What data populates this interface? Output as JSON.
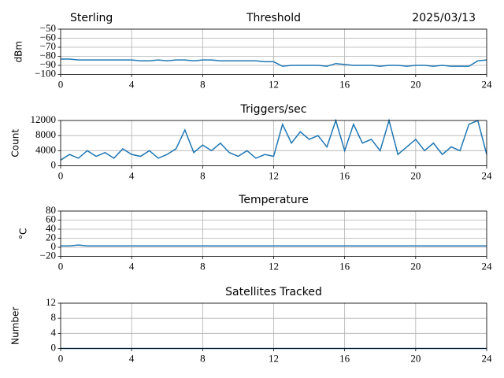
{
  "chart_data": [
    {
      "type": "line",
      "title": "Threshold",
      "location": "Sterling",
      "date": "2025/03/13",
      "y_label": "dBm",
      "x": [
        0,
        0.5,
        1,
        1.5,
        2,
        2.5,
        3,
        3.5,
        4,
        4.5,
        5,
        5.5,
        6,
        6.5,
        7,
        7.5,
        8,
        8.5,
        9,
        9.5,
        10,
        10.5,
        11,
        11.5,
        12,
        12.5,
        13,
        13.5,
        14,
        14.5,
        15,
        15.5,
        16,
        16.5,
        17,
        17.5,
        18,
        18.5,
        19,
        19.5,
        20,
        20.5,
        21,
        21.5,
        22,
        22.5,
        23,
        23.5,
        24
      ],
      "series": [
        {
          "color": "#1f77b4",
          "values": [
            -83,
            -83,
            -84,
            -84,
            -84,
            -84,
            -84,
            -84,
            -84,
            -85,
            -85,
            -84,
            -85,
            -84,
            -84,
            -85,
            -84,
            -84,
            -85,
            -85,
            -85,
            -85,
            -85,
            -86,
            -86,
            -91,
            -90,
            -90,
            -90,
            -90,
            -91,
            -88,
            -89,
            -90,
            -90,
            -90,
            -91,
            -90,
            -90,
            -91,
            -90,
            -90,
            -91,
            -90,
            -91,
            -91,
            -91,
            -85,
            -84
          ]
        }
      ],
      "xlim": [
        0,
        24
      ],
      "xticks": [
        0,
        4,
        8,
        12,
        16,
        20,
        24
      ],
      "ylim": [
        -100,
        -50
      ],
      "yticks": [
        -100,
        -90,
        -80,
        -70,
        -60,
        -50
      ],
      "grid": true
    },
    {
      "type": "line",
      "title": "Triggers/sec",
      "y_label": "Count",
      "x": [
        0,
        0.5,
        1,
        1.5,
        2,
        2.5,
        3,
        3.5,
        4,
        4.5,
        5,
        5.5,
        6,
        6.5,
        7,
        7.5,
        8,
        8.5,
        9,
        9.5,
        10,
        10.5,
        11,
        11.5,
        12,
        12.5,
        13,
        13.5,
        14,
        14.5,
        15,
        15.5,
        16,
        16.5,
        17,
        17.5,
        18,
        18.5,
        19,
        19.5,
        20,
        20.5,
        21,
        21.5,
        22,
        22.5,
        23,
        23.5,
        24
      ],
      "series": [
        {
          "color": "#1f77b4",
          "values": [
            1500,
            3000,
            2000,
            4000,
            2500,
            3500,
            2000,
            4500,
            3000,
            2500,
            4000,
            2000,
            3000,
            4500,
            9500,
            3500,
            5500,
            4000,
            6000,
            3500,
            2500,
            4000,
            2000,
            3000,
            2500,
            11000,
            6000,
            9000,
            7000,
            8000,
            5000,
            12000,
            4000,
            11000,
            6000,
            7000,
            4000,
            12000,
            3000,
            5000,
            7000,
            4000,
            6000,
            3000,
            5000,
            4000,
            11000,
            12000,
            3000
          ]
        }
      ],
      "xlim": [
        0,
        24
      ],
      "xticks": [
        0,
        4,
        8,
        12,
        16,
        20,
        24
      ],
      "ylim": [
        0,
        12000
      ],
      "yticks": [
        0,
        4000,
        8000,
        12000
      ],
      "grid": true
    },
    {
      "type": "line",
      "title": "Temperature",
      "y_label": "°C",
      "x": [
        0,
        0.5,
        1,
        1.5,
        2,
        2.5,
        3,
        3.5,
        4,
        4.5,
        5,
        5.5,
        6,
        6.5,
        7,
        7.5,
        8,
        8.5,
        9,
        9.5,
        10,
        10.5,
        11,
        11.5,
        12,
        12.5,
        13,
        13.5,
        14,
        14.5,
        15,
        15.5,
        16,
        16.5,
        17,
        17.5,
        18,
        18.5,
        19,
        19.5,
        20,
        20.5,
        21,
        21.5,
        22,
        22.5,
        23,
        23.5,
        24
      ],
      "series": [
        {
          "color": "#1f77b4",
          "values": [
            3,
            3,
            5,
            3,
            3,
            3,
            3,
            3,
            3,
            3,
            3,
            3,
            3,
            3,
            3,
            3,
            3,
            3,
            3,
            3,
            3,
            3,
            3,
            3,
            3,
            3,
            3,
            3,
            3,
            3,
            3,
            3,
            3,
            3,
            3,
            3,
            3,
            3,
            3,
            3,
            3,
            3,
            3,
            3,
            3,
            3,
            3,
            3,
            3
          ]
        }
      ],
      "xlim": [
        0,
        24
      ],
      "xticks": [
        0,
        4,
        8,
        12,
        16,
        20,
        24
      ],
      "ylim": [
        -20,
        80
      ],
      "yticks": [
        -20,
        0,
        20,
        40,
        60,
        80
      ],
      "grid": true
    },
    {
      "type": "line",
      "title": "Satellites Tracked",
      "y_label": "Number",
      "x": [
        0,
        0.5,
        1,
        1.5,
        2,
        2.5,
        3,
        3.5,
        4,
        4.5,
        5,
        5.5,
        6,
        6.5,
        7,
        7.5,
        8,
        8.5,
        9,
        9.5,
        10,
        10.5,
        11,
        11.5,
        12,
        12.5,
        13,
        13.5,
        14,
        14.5,
        15,
        15.5,
        16,
        16.5,
        17,
        17.5,
        18,
        18.5,
        19,
        19.5,
        20,
        20.5,
        21,
        21.5,
        22,
        22.5,
        23,
        23.5,
        24
      ],
      "series": [
        {
          "color": "#1f77b4",
          "values": [
            0,
            0,
            0,
            0,
            0,
            0,
            0,
            0,
            0,
            0,
            0,
            0,
            0,
            0,
            0,
            0,
            0,
            0,
            0,
            0,
            0,
            0,
            0,
            0,
            0,
            0,
            0,
            0,
            0,
            0,
            0,
            0,
            0,
            0,
            0,
            0,
            0,
            0,
            0,
            0,
            0,
            0,
            0,
            0,
            0,
            0,
            0,
            0,
            0
          ]
        }
      ],
      "xlim": [
        0,
        24
      ],
      "xticks": [
        0,
        4,
        8,
        12,
        16,
        20,
        24
      ],
      "ylim": [
        0,
        12
      ],
      "yticks": [
        0,
        4,
        8,
        12
      ],
      "grid": true
    }
  ]
}
